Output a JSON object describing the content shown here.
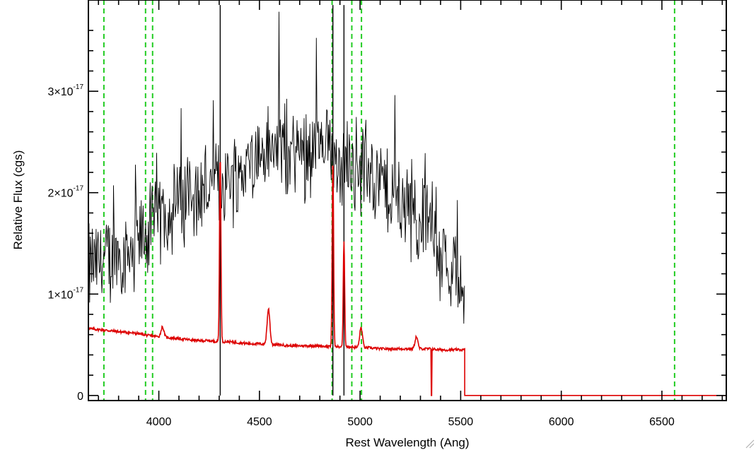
{
  "chart_data": {
    "type": "line",
    "xlabel": "Rest Wavelength (Ang)",
    "ylabel": "Relative Flux (cgs)",
    "xlim": [
      3650,
      6820
    ],
    "ylim": [
      -0.05,
      3.9
    ],
    "y_unit_exponent": -17,
    "x_ticks": [
      4000,
      4500,
      5000,
      5500,
      6000,
      6500
    ],
    "x_tick_labels": [
      "4000",
      "4500",
      "5000",
      "5500",
      "6000",
      "6500"
    ],
    "y_ticks": [
      0,
      1,
      2,
      3
    ],
    "y_tick_labels": [
      {
        "mantissa": "0",
        "exponent": ""
      },
      {
        "mantissa": "1×10",
        "exponent": "-17"
      },
      {
        "mantissa": "2×10",
        "exponent": "-17"
      },
      {
        "mantissa": "3×10",
        "exponent": "-17"
      }
    ],
    "vertical_lines_dashed": [
      3727,
      3934,
      3969,
      4861,
      4959,
      5007,
      6563
    ],
    "series": [
      {
        "style": "noisy-spectrum",
        "color": "#000000",
        "envelope_x": [
          3650,
          3700,
          3750,
          3800,
          3850,
          3900,
          3950,
          4000,
          4050,
          4100,
          4150,
          4200,
          4250,
          4300,
          4350,
          4400,
          4450,
          4500,
          4550,
          4600,
          4650,
          4700,
          4750,
          4800,
          4850,
          4900,
          4950,
          5000,
          5050,
          5100,
          5150,
          5200,
          5250,
          5300,
          5350,
          5400,
          5450,
          5500,
          5520
        ],
        "envelope_y": [
          1.25,
          1.3,
          1.35,
          1.4,
          1.45,
          1.5,
          1.6,
          1.75,
          1.85,
          1.9,
          1.95,
          2.0,
          2.05,
          2.1,
          2.15,
          2.2,
          2.3,
          2.35,
          2.4,
          2.45,
          2.4,
          2.4,
          2.45,
          2.4,
          2.4,
          2.35,
          2.3,
          2.3,
          2.25,
          2.1,
          2.0,
          1.9,
          1.85,
          1.75,
          1.6,
          1.45,
          1.3,
          1.15,
          1.0
        ],
        "noise_amplitude": 0.35,
        "end_x": 5520
      },
      {
        "style": "continuum",
        "color": "#dd0000",
        "x": [
          3650,
          3700,
          3750,
          3800,
          3850,
          3900,
          3950,
          4000,
          4050,
          4100,
          4150,
          4200,
          4250,
          4300,
          4350,
          4400,
          4450,
          4500,
          4550,
          4600,
          4650,
          4700,
          4750,
          4800,
          4850,
          4900,
          4950,
          5000,
          5050,
          5100,
          5150,
          5200,
          5250,
          5300,
          5350,
          5400,
          5450,
          5500,
          5520
        ],
        "y": [
          0.66,
          0.65,
          0.64,
          0.63,
          0.62,
          0.61,
          0.59,
          0.58,
          0.57,
          0.56,
          0.55,
          0.54,
          0.54,
          0.53,
          0.53,
          0.52,
          0.51,
          0.51,
          0.5,
          0.5,
          0.49,
          0.49,
          0.49,
          0.49,
          0.48,
          0.48,
          0.48,
          0.47,
          0.47,
          0.46,
          0.46,
          0.46,
          0.46,
          0.46,
          0.46,
          0.45,
          0.45,
          0.45,
          0.45
        ],
        "emission_lines": [
          {
            "x": 4018,
            "height": 0.1
          },
          {
            "x": 4305,
            "height": 1.85
          },
          {
            "x": 4545,
            "height": 0.35
          },
          {
            "x": 4865,
            "height": 1.85
          },
          {
            "x": 4920,
            "height": 1.05
          },
          {
            "x": 5005,
            "height": 0.2
          },
          {
            "x": 5280,
            "height": 0.12
          }
        ],
        "dropouts": [
          5355
        ],
        "after_end_value": 0
      }
    ]
  }
}
